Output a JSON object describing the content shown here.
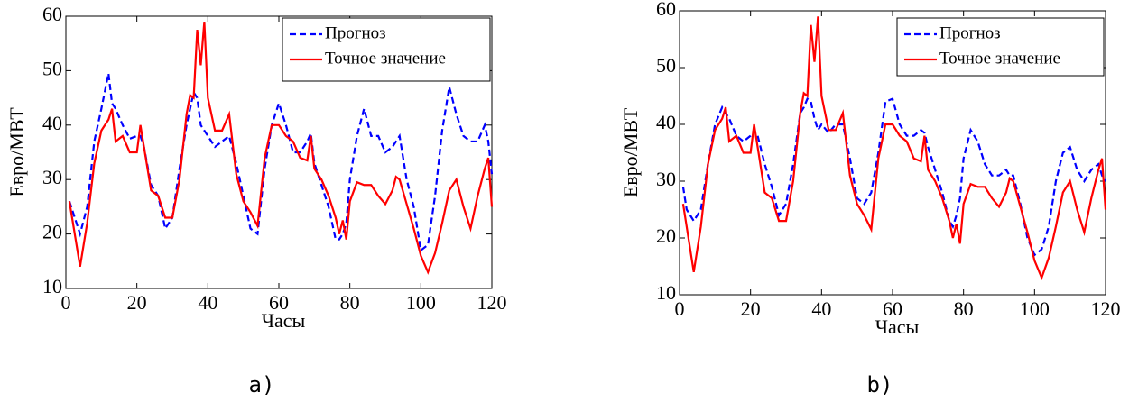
{
  "chart_data": [
    {
      "type": "line",
      "caption": "a)",
      "x_label": "Часы",
      "y_label": "Евро/МВТ",
      "x": [
        1,
        2,
        4,
        6,
        8,
        10,
        12,
        13,
        14,
        16,
        18,
        20,
        21,
        22,
        24,
        26,
        28,
        30,
        32,
        34,
        35,
        36,
        37,
        38,
        39,
        40,
        42,
        44,
        46,
        48,
        50,
        52,
        54,
        56,
        58,
        60,
        62,
        64,
        66,
        68,
        69,
        70,
        72,
        74,
        76,
        77,
        78,
        79,
        80,
        82,
        84,
        86,
        88,
        90,
        92,
        93,
        94,
        96,
        98,
        100,
        102,
        104,
        106,
        108,
        110,
        112,
        114,
        116,
        118,
        119,
        120
      ],
      "series": [
        {
          "name": "Прогноз",
          "color": "#0000ff",
          "dash": true,
          "values": [
            26,
            24,
            20,
            25,
            37,
            43,
            49.5,
            44,
            43,
            40,
            37.5,
            38,
            38,
            36,
            29,
            27,
            21,
            23,
            32,
            40,
            43,
            46,
            45,
            40,
            39,
            38,
            36,
            37,
            38,
            33,
            27,
            21,
            20,
            32,
            40,
            44,
            40,
            35,
            35,
            37,
            38.5,
            33,
            29,
            25,
            19,
            19,
            20,
            22,
            30,
            38,
            43,
            38,
            38,
            35,
            36,
            37,
            38,
            30,
            25,
            17,
            18,
            27,
            39,
            47,
            42,
            38,
            37,
            37,
            40,
            37,
            31
          ]
        },
        {
          "name": "Точное значение",
          "color": "#ff0000",
          "dash": false,
          "values": [
            26,
            22,
            14,
            22,
            33,
            39,
            41,
            43,
            37,
            38,
            35,
            35,
            40,
            36,
            28,
            27,
            23,
            23,
            30,
            42,
            45.5,
            45,
            57.5,
            51,
            59,
            45,
            39,
            39,
            42,
            31,
            26,
            24,
            21.5,
            34,
            40,
            40,
            38,
            37,
            34,
            33.5,
            38,
            32,
            30,
            27,
            23,
            20,
            22.5,
            19,
            26,
            29.5,
            29,
            29,
            27,
            25.5,
            28,
            30.5,
            30,
            25.5,
            21,
            16,
            13,
            16.5,
            22,
            28,
            30,
            25,
            21,
            27,
            32,
            34,
            25
          ]
        }
      ],
      "xlim": [
        0,
        120
      ],
      "xticks": [
        0,
        20,
        40,
        60,
        80,
        100,
        120
      ],
      "ylim": [
        10,
        60
      ],
      "yticks": [
        10,
        20,
        30,
        40,
        50,
        60
      ],
      "legend": "upper right"
    },
    {
      "type": "line",
      "caption": "b)",
      "x_label": "Часы",
      "y_label": "Евро/МВТ",
      "x": [
        1,
        2,
        4,
        6,
        8,
        10,
        12,
        13,
        14,
        16,
        18,
        20,
        21,
        22,
        24,
        26,
        28,
        30,
        32,
        34,
        35,
        36,
        37,
        38,
        39,
        40,
        42,
        44,
        46,
        48,
        50,
        52,
        54,
        56,
        58,
        60,
        62,
        64,
        66,
        68,
        69,
        70,
        72,
        74,
        76,
        77,
        78,
        79,
        80,
        82,
        84,
        86,
        88,
        90,
        92,
        93,
        94,
        96,
        98,
        100,
        102,
        104,
        106,
        108,
        110,
        112,
        114,
        116,
        118,
        119,
        120
      ],
      "series": [
        {
          "name": "Прогноз",
          "color": "#0000ff",
          "dash": true,
          "values": [
            29,
            25,
            23,
            25,
            33,
            40,
            43,
            42,
            41,
            38,
            37,
            38,
            39,
            38,
            33,
            29,
            24,
            26,
            33,
            42,
            43,
            44.5,
            44,
            41,
            39,
            40,
            38.5,
            40,
            40,
            34,
            27,
            26,
            28,
            35,
            44,
            44.5,
            40,
            38,
            38,
            39,
            38.5,
            36,
            32,
            28,
            23,
            22,
            24,
            27,
            34,
            39,
            37,
            33,
            31,
            31,
            32,
            31,
            31,
            26,
            20,
            17,
            18,
            22,
            30,
            35,
            36,
            32,
            30,
            32,
            33,
            31,
            30
          ]
        },
        {
          "name": "Точное значение",
          "color": "#ff0000",
          "dash": false,
          "values": [
            26,
            22,
            14,
            22,
            33,
            39,
            41,
            43,
            37,
            38,
            35,
            35,
            40,
            36,
            28,
            27,
            23,
            23,
            30,
            42,
            45.5,
            45,
            57.5,
            51,
            59,
            45,
            39,
            39,
            42,
            31,
            26,
            24,
            21.5,
            34,
            40,
            40,
            38,
            37,
            34,
            33.5,
            38,
            32,
            30,
            27,
            23,
            20,
            22.5,
            19,
            26,
            29.5,
            29,
            29,
            27,
            25.5,
            28,
            30.5,
            30,
            25.5,
            21,
            16,
            13,
            16.5,
            22,
            28,
            30,
            25,
            21,
            27,
            32,
            34,
            25
          ]
        }
      ],
      "xlim": [
        0,
        120
      ],
      "xticks": [
        0,
        20,
        40,
        60,
        80,
        100,
        120
      ],
      "ylim": [
        10,
        60
      ],
      "yticks": [
        10,
        20,
        30,
        40,
        50,
        60
      ],
      "legend": "upper right"
    }
  ]
}
